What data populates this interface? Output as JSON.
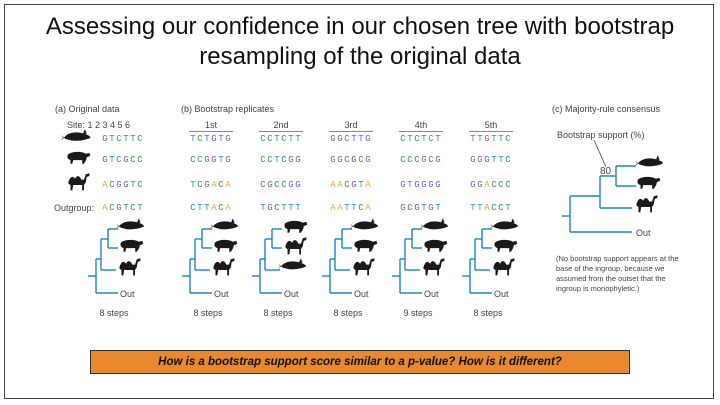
{
  "title": {
    "line1": "Assessing our confidence in our chosen tree with bootstrap",
    "line2": "resampling of the original data"
  },
  "panel_a": {
    "label": "(a) Original data",
    "site_label": "Site: 1 2 3 4 5 6",
    "outgroup_label": "Outgroup:",
    "sequences": [
      "GTCTTC",
      "GTCGCC",
      "ACGGTC",
      "ACGTCT"
    ],
    "steps": "8 steps",
    "out_label": "Out"
  },
  "panel_b": {
    "label": "(b) Bootstrap replicates",
    "replicates": [
      {
        "name": "1st",
        "sequences": [
          "TCTGTG",
          "CCGGTG",
          "TCGACA",
          "CTTACA"
        ],
        "steps": "8 steps"
      },
      {
        "name": "2nd",
        "sequences": [
          "CCTCTT",
          "CCTCGG",
          "CGCCGG",
          "TGCTTT"
        ],
        "steps": "8 steps"
      },
      {
        "name": "3rd",
        "sequences": [
          "GGCTTG",
          "GGCGCG",
          "AACGTA",
          "AATTCA"
        ],
        "steps": "8 steps"
      },
      {
        "name": "4th",
        "sequences": [
          "CTCTCT",
          "CCCGCG",
          "GTGGGG",
          "GCGTGT"
        ],
        "steps": "9 steps"
      },
      {
        "name": "5th",
        "sequences": [
          "TTGTTC",
          "GGGTTC",
          "GGACCC",
          "TTACCT"
        ],
        "steps": "8 steps"
      }
    ],
    "out_label": "Out"
  },
  "panel_c": {
    "label": "(c) Majority-rule consensus",
    "support_label": "Bootstrap support (%)",
    "support_value": "80",
    "out_label": "Out",
    "note": "(No bootstrap support appears at the base of the ingroup, because we assumed from the outset that the ingroup is monophyletic.)"
  },
  "question": "How is a bootstrap support score similar to a p-value? How is it different?",
  "colors": {
    "A": "#e8a33a",
    "C": "#3a9a4a",
    "G": "#7b5bb8",
    "T": "#2e8fd0",
    "tree": "#1c86c8",
    "banner": "#e8892f"
  },
  "icons": [
    "whale-icon",
    "pig-icon",
    "camel-icon"
  ]
}
